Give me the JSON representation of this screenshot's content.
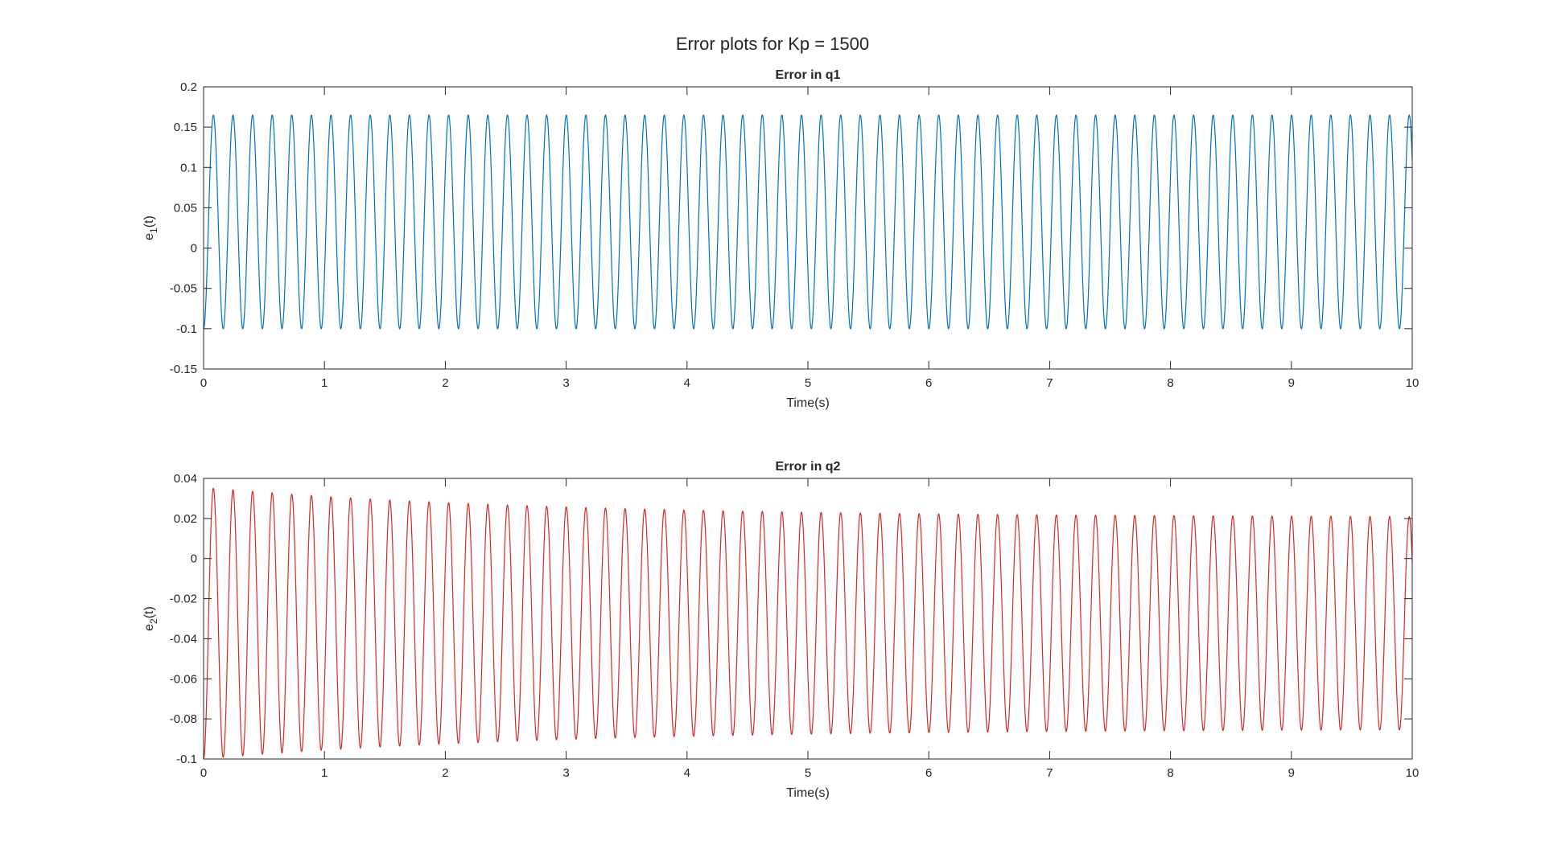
{
  "figure": {
    "title": "Error plots for Kp = 1500"
  },
  "chart_data": [
    {
      "type": "line",
      "title": "Error in q1",
      "xlabel": "Time(s)",
      "ylabel": {
        "base": "e",
        "sub": "1",
        "suffix": "(t)"
      },
      "xlim": [
        0,
        10
      ],
      "ylim": [
        -0.15,
        0.2
      ],
      "xticks": [
        0,
        1,
        2,
        3,
        4,
        5,
        6,
        7,
        8,
        9,
        10
      ],
      "xtick_labels": [
        "0",
        "1",
        "2",
        "3",
        "4",
        "5",
        "6",
        "7",
        "8",
        "9",
        "10"
      ],
      "yticks": [
        -0.15,
        -0.1,
        -0.05,
        0,
        0.05,
        0.1,
        0.15,
        0.2
      ],
      "ytick_labels": [
        "-0.15",
        "-0.1",
        "-0.05",
        "0",
        "0.05",
        "0.1",
        "0.15",
        "0.2"
      ],
      "grid": false,
      "color": "#0072BD",
      "series": [
        {
          "waveform": "sinusoid",
          "start": {
            "t": 0,
            "e": -0.1
          },
          "period": 0.1622,
          "max_start": 0.165,
          "max_end": 0.165,
          "min_start": -0.1,
          "min_end": -0.1,
          "t_end": 10
        }
      ]
    },
    {
      "type": "line",
      "title": "Error in q2",
      "xlabel": "Time(s)",
      "ylabel": {
        "base": "e",
        "sub": "2",
        "suffix": "(t)"
      },
      "xlim": [
        0,
        10
      ],
      "ylim": [
        -0.1,
        0.04
      ],
      "xticks": [
        0,
        1,
        2,
        3,
        4,
        5,
        6,
        7,
        8,
        9,
        10
      ],
      "xtick_labels": [
        "0",
        "1",
        "2",
        "3",
        "4",
        "5",
        "6",
        "7",
        "8",
        "9",
        "10"
      ],
      "yticks": [
        -0.1,
        -0.08,
        -0.06,
        -0.04,
        -0.02,
        0,
        0.02,
        0.04
      ],
      "ytick_labels": [
        "-0.1",
        "-0.08",
        "-0.06",
        "-0.04",
        "-0.02",
        "0",
        "0.02",
        "0.04"
      ],
      "grid": false,
      "color": "#D62728",
      "series": [
        {
          "waveform": "sinusoid",
          "start": {
            "t": 0,
            "e": -0.1
          },
          "period": 0.1622,
          "max_start": 0.0355,
          "max_end": 0.0205,
          "min_start": -0.1,
          "min_end": -0.085,
          "decay_rate": 0.35,
          "t_end": 10
        }
      ]
    }
  ]
}
